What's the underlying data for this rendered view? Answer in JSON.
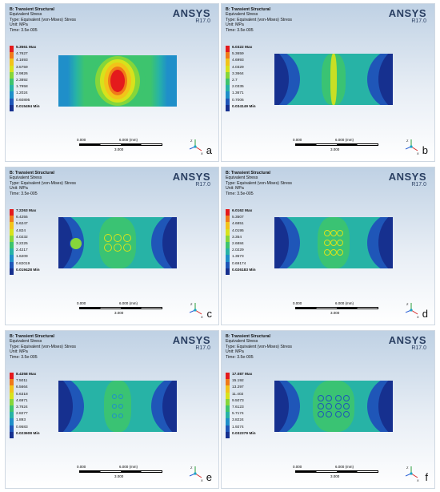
{
  "panels": [
    {
      "label": "a",
      "type": "B: Transient Structural",
      "quantity": "Equivalent Stress",
      "type_line": "Type: Equivalent (von-Mises) Stress",
      "unit": "Unit: MPa",
      "time": "Time: 3.5e-005",
      "brand": "ANSYS",
      "version": "R17.0",
      "max_line": "5.3561 Max",
      "min_line": "0.015494 Min",
      "ticks": [
        "4.7627",
        "4.1693",
        "3.5759",
        "2.9826",
        "2.3892",
        "1.7958",
        "1.2024",
        "0.60895"
      ],
      "scale": [
        "0.000",
        "6.000 (mm)",
        "3.000"
      ]
    },
    {
      "label": "b",
      "type": "B: Transient Structural",
      "quantity": "Equivalent Stress",
      "type_line": "Type: Equivalent (von-Mises) Stress",
      "unit": "Unit: MPa",
      "time": "Time: 3.5e-005",
      "brand": "ANSYS",
      "version": "R17.0",
      "max_line": "6.0322 Max",
      "min_line": "0.034149 Min",
      "ticks": [
        "5.3659",
        "4.6993",
        "4.0329",
        "3.3664",
        "2.7",
        "2.0335",
        "1.3671",
        "0.7006"
      ],
      "scale": [
        "0.000",
        "6.000 (mm)",
        "3.000"
      ]
    },
    {
      "label": "c",
      "type": "B: Transient Structural",
      "quantity": "Equivalent Stress",
      "type_line": "Type: Equivalent (von-Mises) Stress",
      "unit": "Unit: MPa",
      "time": "Time: 3.5e-005",
      "brand": "ANSYS",
      "version": "R17.0",
      "max_line": "7.2263 Max",
      "min_line": "0.019428 Min",
      "ticks": [
        "6.4255",
        "5.6247",
        "4.824",
        "4.0232",
        "3.2225",
        "2.4217",
        "1.6209",
        "0.82019"
      ],
      "scale": [
        "0.000",
        "6.000 (mm)",
        "3.000"
      ]
    },
    {
      "label": "d",
      "type": "B: Transient Structural",
      "quantity": "Equivalent Stress",
      "type_line": "Type: Equivalent (von-Mises) Stress",
      "unit": "Unit: MPa",
      "time": "Time: 3.5e-005",
      "brand": "ANSYS",
      "version": "R17.0",
      "max_line": "6.0162 Max",
      "min_line": "0.026183 Min",
      "ticks": [
        "5.3507",
        "4.6851",
        "4.0195",
        "3.354",
        "2.6884",
        "2.0229",
        "1.3573",
        "0.69174"
      ],
      "scale": [
        "0.000",
        "6.000 (mm)",
        "3.000"
      ]
    },
    {
      "label": "e",
      "type": "B: Transient Structural",
      "quantity": "Equivalent Stress",
      "type_line": "Type: Equivalent (von-Mises) Stress",
      "unit": "Unit: MPa",
      "time": "Time: 3.5e-005",
      "brand": "ANSYS",
      "version": "R17.0",
      "max_line": "8.4358 Max",
      "min_line": "0.023608 Min",
      "ticks": [
        "7.5011",
        "6.5664",
        "5.6318",
        "4.6971",
        "3.7624",
        "2.8277",
        "1.893",
        "0.9583"
      ],
      "scale": [
        "0.000",
        "6.000 (mm)",
        "3.000"
      ]
    },
    {
      "label": "f",
      "type": "B: Transient Structural",
      "quantity": "Equivalent Stress",
      "type_line": "Type: Equivalent (von-Mises) Stress",
      "unit": "Unit: MPa",
      "time": "Time: 3.5e-005",
      "brand": "ANSYS",
      "version": "R17.0",
      "max_line": "17.087 Max",
      "min_line": "0.032379 Min",
      "ticks": [
        "15.192",
        "13.297",
        "11.402",
        "9.5073",
        "7.6123",
        "5.7174",
        "3.8224",
        "1.9274"
      ],
      "scale": [
        "0.000",
        "6.000 (mm)",
        "3.000"
      ]
    }
  ],
  "legend_colors": [
    "#e41a1c",
    "#f07a18",
    "#f2c31a",
    "#d8e21c",
    "#86d63a",
    "#3dc46e",
    "#27b3a6",
    "#1f8fc9",
    "#1f56b8",
    "#16308f"
  ]
}
